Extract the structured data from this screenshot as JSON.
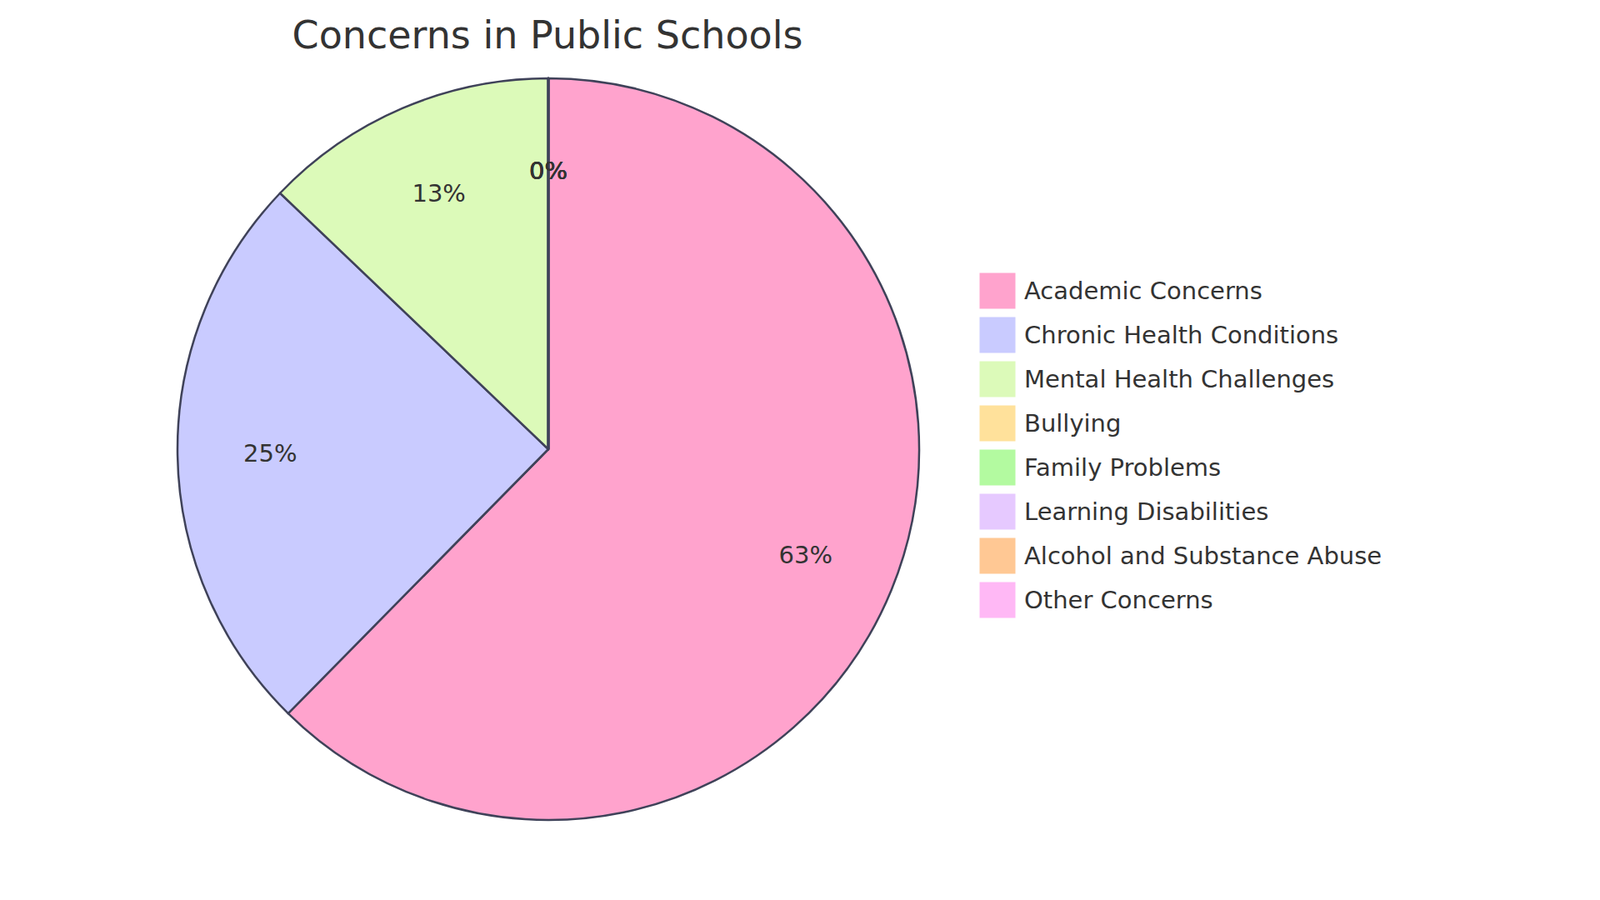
{
  "chart_data": {
    "type": "pie",
    "title": "Concerns in Public Schools",
    "categories": [
      "Academic Concerns",
      "Chronic Health Conditions",
      "Mental Health Challenges",
      "Bullying",
      "Family Problems",
      "Learning Disabilities",
      "Alcohol and Substance Abuse",
      "Other Concerns"
    ],
    "values": [
      63,
      25,
      13,
      0,
      0,
      0,
      0,
      0
    ],
    "value_labels": [
      "63%",
      "25%",
      "13%",
      "0%",
      "0%",
      "0%",
      "0%",
      "0%"
    ],
    "colors": [
      "#ffa3cd",
      "#c9cbff",
      "#dcfab9",
      "#ffe19b",
      "#b3faa0",
      "#e6c9ff",
      "#ffc894",
      "#ffb8f5"
    ],
    "data_labels": true,
    "legend": "right"
  }
}
